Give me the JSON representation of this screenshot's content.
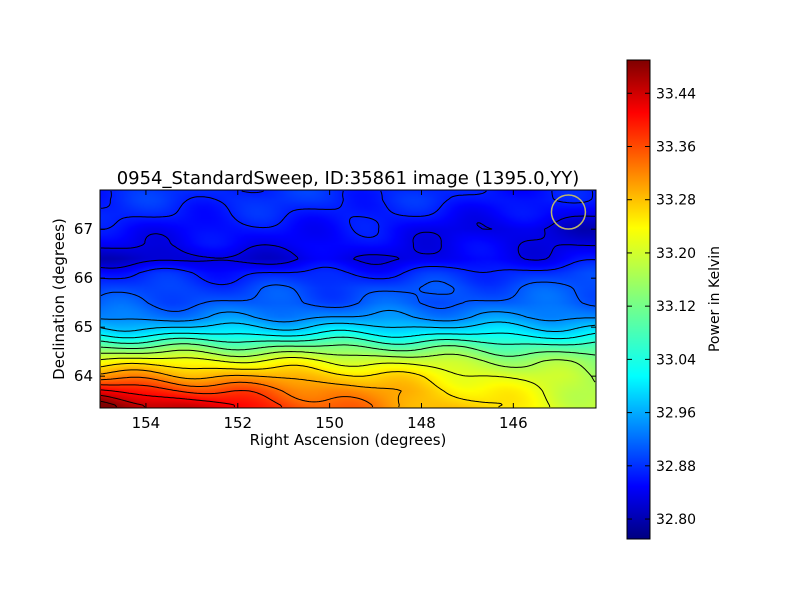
{
  "chart_data": {
    "type": "heatmap",
    "title": "0954_StandardSweep, ID:35861 image (1395.0,YY)",
    "xlabel": "Right Ascension (degrees)",
    "ylabel": "Declination (degrees)",
    "xlim": [
      155.0,
      144.2
    ],
    "ylim": [
      63.35,
      67.8
    ],
    "x_ticks": [
      154,
      152,
      150,
      148,
      146
    ],
    "y_ticks": [
      64,
      65,
      66,
      67
    ],
    "colorbar": {
      "label": "Power in Kelvin",
      "range": [
        32.77,
        33.49
      ],
      "ticks": [
        "33.44",
        "33.36",
        "33.28",
        "33.20",
        "33.12",
        "33.04",
        "32.96",
        "32.88",
        "32.80"
      ],
      "colormap": "jet"
    },
    "value_field": {
      "description_rows": "approximate power (K) along declination bands, west-to-east variation",
      "dec": [
        63.4,
        63.7,
        64.0,
        64.3,
        64.6,
        64.9,
        65.2,
        65.5,
        65.8,
        66.1,
        66.4,
        66.7,
        67.0,
        67.3,
        67.6
      ],
      "ra_west": [
        33.49,
        33.4,
        33.3,
        33.22,
        33.12,
        33.02,
        32.95,
        32.92,
        32.9,
        32.88,
        32.82,
        32.85,
        32.86,
        32.88,
        32.89
      ],
      "ra_mid": [
        33.32,
        33.3,
        33.26,
        33.2,
        33.12,
        33.03,
        32.96,
        32.92,
        32.91,
        32.88,
        32.84,
        32.86,
        32.87,
        32.88,
        32.89
      ],
      "ra_east": [
        33.18,
        33.17,
        33.16,
        33.14,
        33.09,
        33.02,
        32.96,
        32.93,
        32.92,
        32.9,
        32.86,
        32.84,
        32.82,
        32.85,
        32.87
      ]
    },
    "beam_marker": {
      "ra": 144.8,
      "dec": 67.35,
      "color": "#bdb76b"
    }
  }
}
